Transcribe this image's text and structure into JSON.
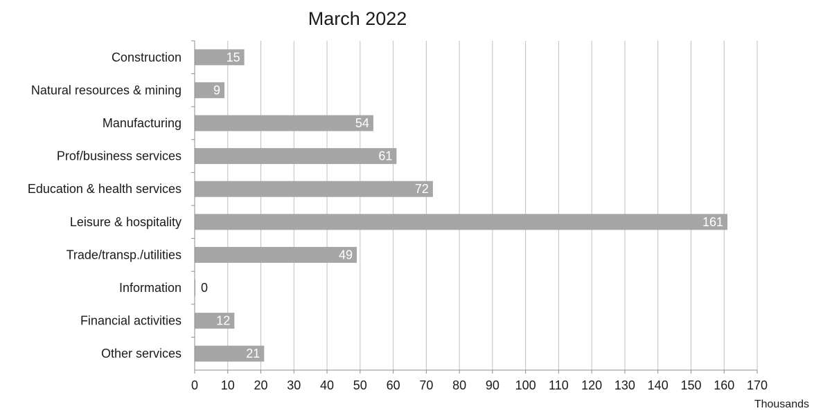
{
  "chart_data": {
    "type": "bar",
    "orientation": "horizontal",
    "title": "March 2022",
    "xlabel": "",
    "ylabel": "",
    "units_label": "Thousands",
    "categories": [
      "Construction",
      "Natural resources & mining",
      "Manufacturing",
      "Prof/business services",
      "Education & health services",
      "Leisure & hospitality",
      "Trade/transp./utilities",
      "Information",
      "Financial activities",
      "Other services"
    ],
    "values": [
      15,
      9,
      54,
      61,
      72,
      161,
      49,
      0,
      12,
      21
    ],
    "data_labels": [
      "15",
      "9",
      "54",
      "61",
      "72",
      "161",
      "49",
      "0",
      "12",
      "21"
    ],
    "xlim": [
      0,
      170
    ],
    "x_ticks": [
      0,
      10,
      20,
      30,
      40,
      50,
      60,
      70,
      80,
      90,
      100,
      110,
      120,
      130,
      140,
      150,
      160,
      170
    ],
    "x_tick_labels": [
      "0",
      "10",
      "20",
      "30",
      "40",
      "50",
      "60",
      "70",
      "80",
      "90",
      "100",
      "110",
      "120",
      "130",
      "140",
      "150",
      "160",
      "170"
    ],
    "grid": true,
    "legend": "none",
    "colors": {
      "bar": "#a6a6a6",
      "grid": "#bfbfbf",
      "axis": "#8c8c8c"
    }
  }
}
